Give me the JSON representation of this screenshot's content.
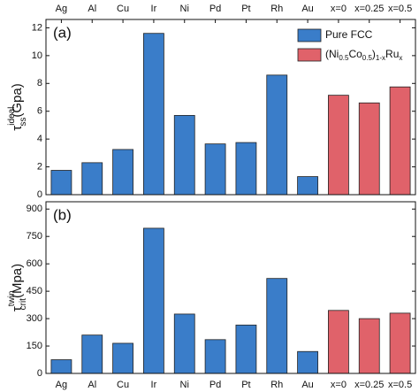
{
  "chart_data": [
    {
      "type": "bar",
      "annotation": "(a)",
      "ylabel": [
        "τ",
        "ideal",
        "ss",
        "(Gpa)"
      ],
      "categories": [
        "Ag",
        "Al",
        "Cu",
        "Ir",
        "Ni",
        "Pd",
        "Pt",
        "Rh",
        "Au",
        "x=0",
        "x=0.25",
        "x=0.5"
      ],
      "series": [
        {
          "name": [
            "Pure FCC"
          ],
          "color": "#3a7dc9",
          "values": [
            1.75,
            2.3,
            3.25,
            11.6,
            5.7,
            3.65,
            3.75,
            8.6,
            1.3,
            null,
            null,
            null
          ]
        },
        {
          "name": [
            "(Ni",
            "0.5",
            "Co",
            "0.5",
            ")",
            "1-x",
            "Ru",
            "x"
          ],
          "color": "#e0626a",
          "values": [
            null,
            null,
            null,
            null,
            null,
            null,
            null,
            null,
            null,
            7.15,
            6.6,
            7.75
          ]
        }
      ],
      "ylim": [
        0,
        12.6
      ],
      "yticks": [
        0,
        2,
        4,
        6,
        8,
        10,
        12
      ],
      "legend": "upper right"
    },
    {
      "type": "bar",
      "annotation": "(b)",
      "ylabel": [
        "τ",
        "twin",
        "crit",
        "(Mpa)"
      ],
      "categories": [
        "Ag",
        "Al",
        "Cu",
        "Ir",
        "Ni",
        "Pd",
        "Pt",
        "Rh",
        "Au",
        "x=0",
        "x=0.25",
        "x=0.5"
      ],
      "series": [
        {
          "color": "#3a7dc9",
          "values": [
            75,
            210,
            165,
            795,
            325,
            185,
            265,
            520,
            120,
            null,
            null,
            null
          ]
        },
        {
          "color": "#e0626a",
          "values": [
            null,
            null,
            null,
            null,
            null,
            null,
            null,
            null,
            null,
            345,
            300,
            330
          ]
        }
      ],
      "ylim": [
        0,
        940
      ],
      "yticks": [
        0,
        150,
        300,
        450,
        600,
        750,
        900
      ]
    }
  ]
}
